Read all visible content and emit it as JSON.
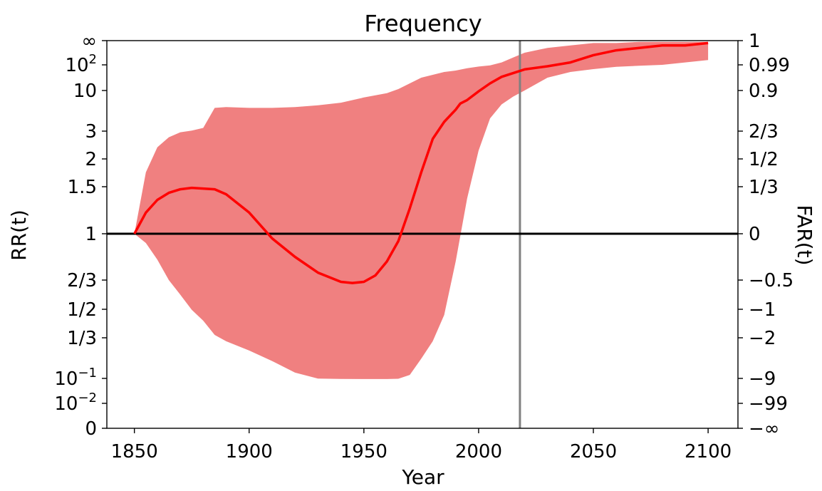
{
  "chart_data": {
    "type": "area",
    "title": "Frequency",
    "xlabel": "Year",
    "ylabel": "RR(t)",
    "ylabel_right": "FAR(t)",
    "xlim": [
      1838,
      2113
    ],
    "x_ticks": [
      1850,
      1900,
      1950,
      2000,
      2050,
      2100
    ],
    "y_ticks": [
      {
        "label": "∞",
        "right": "1"
      },
      {
        "label": "10",
        "sup": "2",
        "right": "0.99"
      },
      {
        "label": "10",
        "right": "0.9"
      },
      {
        "label": "3",
        "right": "2/3"
      },
      {
        "label": "2",
        "right": "1/2"
      },
      {
        "label": "1.5",
        "right": "1/3"
      },
      {
        "label": "1",
        "right": "0"
      },
      {
        "label": "2/3",
        "right": "−0.5"
      },
      {
        "label": "1/2",
        "right": "−1"
      },
      {
        "label": "1/3",
        "right": "−2"
      },
      {
        "label": "10",
        "sup": "−1",
        "right": "−9"
      },
      {
        "label": "10",
        "sup": "−2",
        "right": "−99"
      },
      {
        "label": "0",
        "right": "−∞"
      }
    ],
    "y_scale": "FAR (RR transformed)",
    "reference_lines": {
      "horizontal_RR": 1,
      "vertical_year": 2018
    },
    "series": [
      {
        "kind": "line",
        "color": "#ff0000",
        "x": [
          1850,
          1855,
          1860,
          1865,
          1870,
          1875,
          1880,
          1885,
          1890,
          1900,
          1910,
          1920,
          1930,
          1940,
          1945,
          1950,
          1955,
          1960,
          1965,
          1970,
          1975,
          1980,
          1985,
          1990,
          1992,
          1995,
          2000,
          2005,
          2010,
          2020,
          2030,
          2040,
          2050,
          2060,
          2070,
          2080,
          2090,
          2100
        ],
        "y_far": [
          0,
          0.15,
          0.24,
          0.29,
          0.315,
          0.325,
          0.32,
          0.315,
          0.28,
          0.15,
          -0.05,
          -0.25,
          -0.42,
          -0.53,
          -0.55,
          -0.53,
          -0.45,
          -0.3,
          -0.08,
          0.18,
          0.42,
          0.62,
          0.72,
          0.79,
          0.825,
          0.845,
          0.895,
          0.925,
          0.948,
          0.974,
          0.985,
          0.991,
          0.994,
          0.996,
          0.997,
          0.998,
          0.998,
          0.999
        ]
      },
      {
        "kind": "band",
        "color": "#f08080",
        "x": [
          1850,
          1855,
          1860,
          1865,
          1870,
          1875,
          1880,
          1885,
          1890,
          1900,
          1910,
          1920,
          1930,
          1940,
          1950,
          1960,
          1965,
          1970,
          1975,
          1980,
          1985,
          1990,
          1995,
          2000,
          2005,
          2010,
          2015,
          2020,
          2030,
          2040,
          2050,
          2060,
          2070,
          2080,
          2090,
          2100
        ],
        "upper_far": [
          0,
          0.42,
          0.57,
          0.63,
          0.66,
          0.67,
          0.685,
          0.8,
          0.805,
          0.8,
          0.8,
          0.805,
          0.815,
          0.83,
          0.86,
          0.885,
          0.905,
          0.925,
          0.945,
          0.955,
          0.965,
          0.97,
          0.978,
          0.984,
          0.988,
          0.991,
          0.993,
          0.995,
          0.997,
          0.998,
          0.999,
          0.999,
          0.9995,
          0.9995,
          0.9995,
          0.9995
        ],
        "lower_far": [
          0,
          -0.1,
          -0.28,
          -0.5,
          -0.75,
          -1.02,
          -1.4,
          -1.9,
          -2.6,
          -4.2,
          -6.0,
          -8.0,
          -9.8,
          -11.0,
          -11.4,
          -11.2,
          -10.2,
          -8.4,
          -5.6,
          -2.6,
          -1.2,
          -0.3,
          0.25,
          0.55,
          0.74,
          0.82,
          0.865,
          0.9,
          0.945,
          0.965,
          0.975,
          0.983,
          0.987,
          0.99,
          0.991,
          0.992
        ]
      }
    ]
  }
}
